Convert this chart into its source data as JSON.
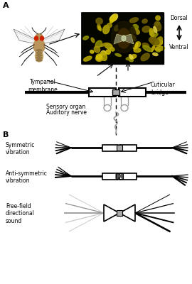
{
  "panel_A_label": "A",
  "panel_B_label": "B",
  "dorsal_label": "Dorsal",
  "ventral_label": "Ventral",
  "tympanal_membrane_label": "Tympanal\nmembrane",
  "cuticular_bridge_label": "Cuticular\nbridge",
  "sensory_organ_label": "Sensory organ",
  "auditory_nerve_label": "Auditory nerve",
  "symmetric_label": "Symmetric\nvibration",
  "antisymmetric_label": "Anti-symmetric\nvibration",
  "freefield_label": "Free-field\ndirectional\nsound",
  "bg_color": "#ffffff",
  "black": "#000000",
  "gray": "#999999",
  "lgray": "#cccccc"
}
